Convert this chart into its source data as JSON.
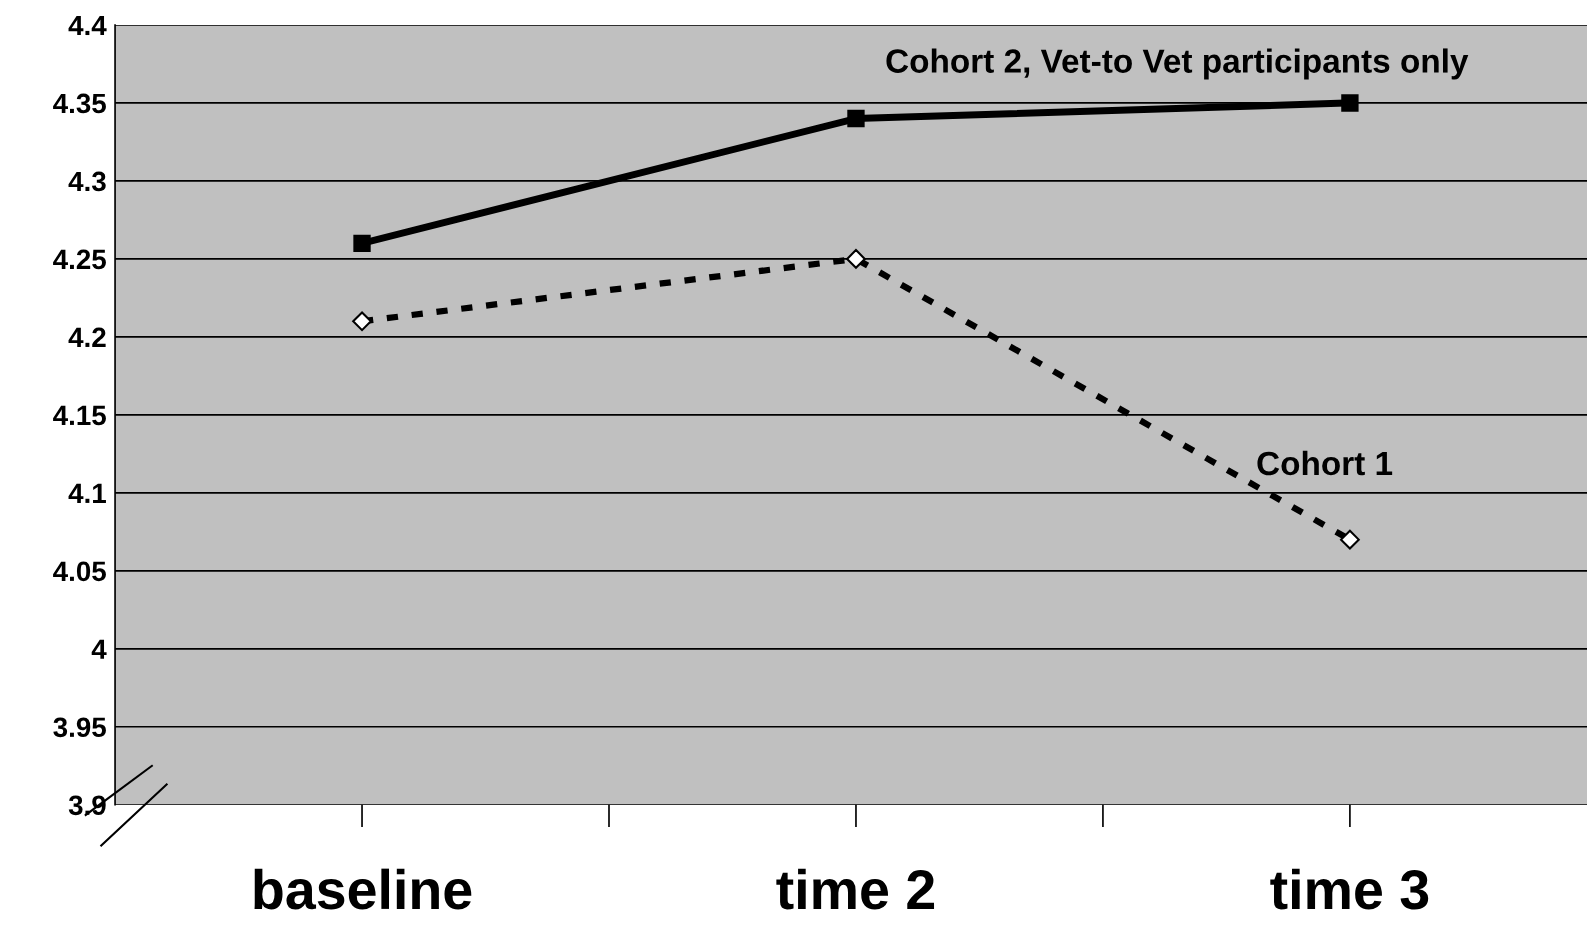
{
  "chart_data": {
    "type": "line",
    "categories": [
      "baseline",
      "time 2",
      "time 3"
    ],
    "series": [
      {
        "name": "Cohort 2, Vet-to Vet participants only",
        "color": "#000000",
        "values": [
          4.26,
          4.34,
          4.35
        ],
        "marker": "square",
        "line_style": "solid"
      },
      {
        "name": "Cohort 1",
        "color": "#000000",
        "values": [
          4.21,
          4.25,
          4.07
        ],
        "marker": "diamond",
        "line_style": "dashed"
      }
    ],
    "ylim": [
      3.9,
      4.4
    ],
    "yticks": [
      3.9,
      3.95,
      4,
      4.05,
      4.1,
      4.15,
      4.2,
      4.25,
      4.3,
      4.35,
      4.4
    ],
    "grid": "y",
    "legend": false
  }
}
